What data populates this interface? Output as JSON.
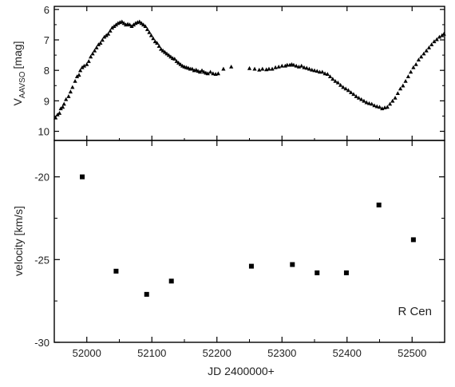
{
  "chart_data": [
    {
      "panel": "top",
      "type": "scatter",
      "marker": "triangle",
      "ylabel_main": "V",
      "ylabel_sub": "AAVSO",
      "ylabel_unit": "[mag]",
      "xlim": [
        51950,
        52550
      ],
      "ylim": [
        10.3,
        5.9
      ],
      "y_inverted": true,
      "grid": false,
      "yticks": [
        6,
        7,
        8,
        9,
        10
      ],
      "color": "#000000",
      "points": [
        [
          51952,
          9.55
        ],
        [
          51955,
          9.45
        ],
        [
          51958,
          9.4
        ],
        [
          51960,
          9.25
        ],
        [
          51963,
          9.2
        ],
        [
          51965,
          9.1
        ],
        [
          51968,
          8.95
        ],
        [
          51972,
          8.85
        ],
        [
          51975,
          8.7
        ],
        [
          51978,
          8.55
        ],
        [
          51982,
          8.35
        ],
        [
          51985,
          8.2
        ],
        [
          51988,
          8.15
        ],
        [
          51990,
          8.0
        ],
        [
          51993,
          7.9
        ],
        [
          51996,
          7.85
        ],
        [
          52000,
          7.8
        ],
        [
          52003,
          7.7
        ],
        [
          52006,
          7.55
        ],
        [
          52009,
          7.45
        ],
        [
          52012,
          7.35
        ],
        [
          52015,
          7.25
        ],
        [
          52018,
          7.15
        ],
        [
          52021,
          7.1
        ],
        [
          52024,
          7.0
        ],
        [
          52027,
          6.9
        ],
        [
          52030,
          6.85
        ],
        [
          52033,
          6.8
        ],
        [
          52036,
          6.7
        ],
        [
          52039,
          6.6
        ],
        [
          52042,
          6.55
        ],
        [
          52045,
          6.5
        ],
        [
          52048,
          6.45
        ],
        [
          52051,
          6.42
        ],
        [
          52054,
          6.4
        ],
        [
          52057,
          6.45
        ],
        [
          52060,
          6.5
        ],
        [
          52063,
          6.48
        ],
        [
          52066,
          6.5
        ],
        [
          52069,
          6.55
        ],
        [
          52072,
          6.5
        ],
        [
          52075,
          6.45
        ],
        [
          52078,
          6.42
        ],
        [
          52081,
          6.4
        ],
        [
          52084,
          6.45
        ],
        [
          52087,
          6.5
        ],
        [
          52090,
          6.55
        ],
        [
          52093,
          6.65
        ],
        [
          52096,
          6.75
        ],
        [
          52099,
          6.85
        ],
        [
          52102,
          6.95
        ],
        [
          52105,
          7.05
        ],
        [
          52108,
          7.1
        ],
        [
          52111,
          7.2
        ],
        [
          52114,
          7.3
        ],
        [
          52117,
          7.35
        ],
        [
          52120,
          7.4
        ],
        [
          52123,
          7.45
        ],
        [
          52126,
          7.5
        ],
        [
          52129,
          7.55
        ],
        [
          52132,
          7.6
        ],
        [
          52135,
          7.62
        ],
        [
          52138,
          7.7
        ],
        [
          52141,
          7.75
        ],
        [
          52144,
          7.8
        ],
        [
          52147,
          7.85
        ],
        [
          52150,
          7.88
        ],
        [
          52153,
          7.9
        ],
        [
          52156,
          7.92
        ],
        [
          52159,
          7.95
        ],
        [
          52162,
          7.95
        ],
        [
          52165,
          8.0
        ],
        [
          52168,
          7.98
        ],
        [
          52171,
          8.02
        ],
        [
          52174,
          8.05
        ],
        [
          52177,
          8.0
        ],
        [
          52180,
          8.05
        ],
        [
          52183,
          8.08
        ],
        [
          52186,
          8.1
        ],
        [
          52190,
          8.05
        ],
        [
          52194,
          8.1
        ],
        [
          52198,
          8.12
        ],
        [
          52202,
          8.1
        ],
        [
          52210,
          7.95
        ],
        [
          52222,
          7.88
        ],
        [
          52250,
          7.93
        ],
        [
          52258,
          7.95
        ],
        [
          52265,
          7.98
        ],
        [
          52270,
          7.95
        ],
        [
          52276,
          7.97
        ],
        [
          52280,
          7.95
        ],
        [
          52285,
          7.95
        ],
        [
          52290,
          7.9
        ],
        [
          52295,
          7.88
        ],
        [
          52300,
          7.85
        ],
        [
          52305,
          7.85
        ],
        [
          52308,
          7.82
        ],
        [
          52312,
          7.82
        ],
        [
          52315,
          7.8
        ],
        [
          52318,
          7.82
        ],
        [
          52322,
          7.85
        ],
        [
          52326,
          7.88
        ],
        [
          52330,
          7.85
        ],
        [
          52334,
          7.9
        ],
        [
          52338,
          7.92
        ],
        [
          52342,
          7.95
        ],
        [
          52346,
          7.98
        ],
        [
          52350,
          8.0
        ],
        [
          52354,
          8.02
        ],
        [
          52358,
          8.05
        ],
        [
          52362,
          8.05
        ],
        [
          52366,
          8.1
        ],
        [
          52370,
          8.12
        ],
        [
          52374,
          8.2
        ],
        [
          52378,
          8.28
        ],
        [
          52382,
          8.35
        ],
        [
          52386,
          8.4
        ],
        [
          52390,
          8.48
        ],
        [
          52394,
          8.55
        ],
        [
          52398,
          8.6
        ],
        [
          52402,
          8.65
        ],
        [
          52406,
          8.72
        ],
        [
          52410,
          8.78
        ],
        [
          52414,
          8.85
        ],
        [
          52418,
          8.9
        ],
        [
          52422,
          8.95
        ],
        [
          52426,
          9.0
        ],
        [
          52430,
          9.05
        ],
        [
          52434,
          9.08
        ],
        [
          52438,
          9.1
        ],
        [
          52442,
          9.15
        ],
        [
          52446,
          9.18
        ],
        [
          52450,
          9.2
        ],
        [
          52454,
          9.25
        ],
        [
          52458,
          9.22
        ],
        [
          52462,
          9.2
        ],
        [
          52466,
          9.1
        ],
        [
          52470,
          9.0
        ],
        [
          52474,
          8.9
        ],
        [
          52478,
          8.75
        ],
        [
          52482,
          8.6
        ],
        [
          52486,
          8.5
        ],
        [
          52490,
          8.35
        ],
        [
          52494,
          8.2
        ],
        [
          52498,
          8.05
        ],
        [
          52502,
          7.9
        ],
        [
          52506,
          7.8
        ],
        [
          52510,
          7.65
        ],
        [
          52514,
          7.55
        ],
        [
          52518,
          7.45
        ],
        [
          52522,
          7.35
        ],
        [
          52526,
          7.25
        ],
        [
          52530,
          7.15
        ],
        [
          52534,
          7.05
        ],
        [
          52538,
          6.98
        ],
        [
          52542,
          6.9
        ],
        [
          52546,
          6.85
        ],
        [
          52549,
          6.8
        ]
      ]
    },
    {
      "panel": "bottom",
      "type": "scatter",
      "marker": "square",
      "ylabel": "velocity [km/s]",
      "xlabel": "JD 2400000+",
      "xlim": [
        51950,
        52550
      ],
      "ylim": [
        -30,
        -17.8
      ],
      "xticks": [
        52000,
        52100,
        52200,
        52300,
        52400,
        52500
      ],
      "yticks": [
        -20,
        -25,
        -30
      ],
      "grid": false,
      "annotation": "R Cen",
      "color": "#000000",
      "points": [
        [
          51993,
          -20.0
        ],
        [
          52045,
          -25.7
        ],
        [
          52092,
          -27.1
        ],
        [
          52130,
          -26.3
        ],
        [
          52253,
          -25.4
        ],
        [
          52316,
          -25.3
        ],
        [
          52354,
          -25.8
        ],
        [
          52399,
          -25.8
        ],
        [
          52449,
          -21.7
        ],
        [
          52502,
          -23.8
        ]
      ]
    }
  ]
}
